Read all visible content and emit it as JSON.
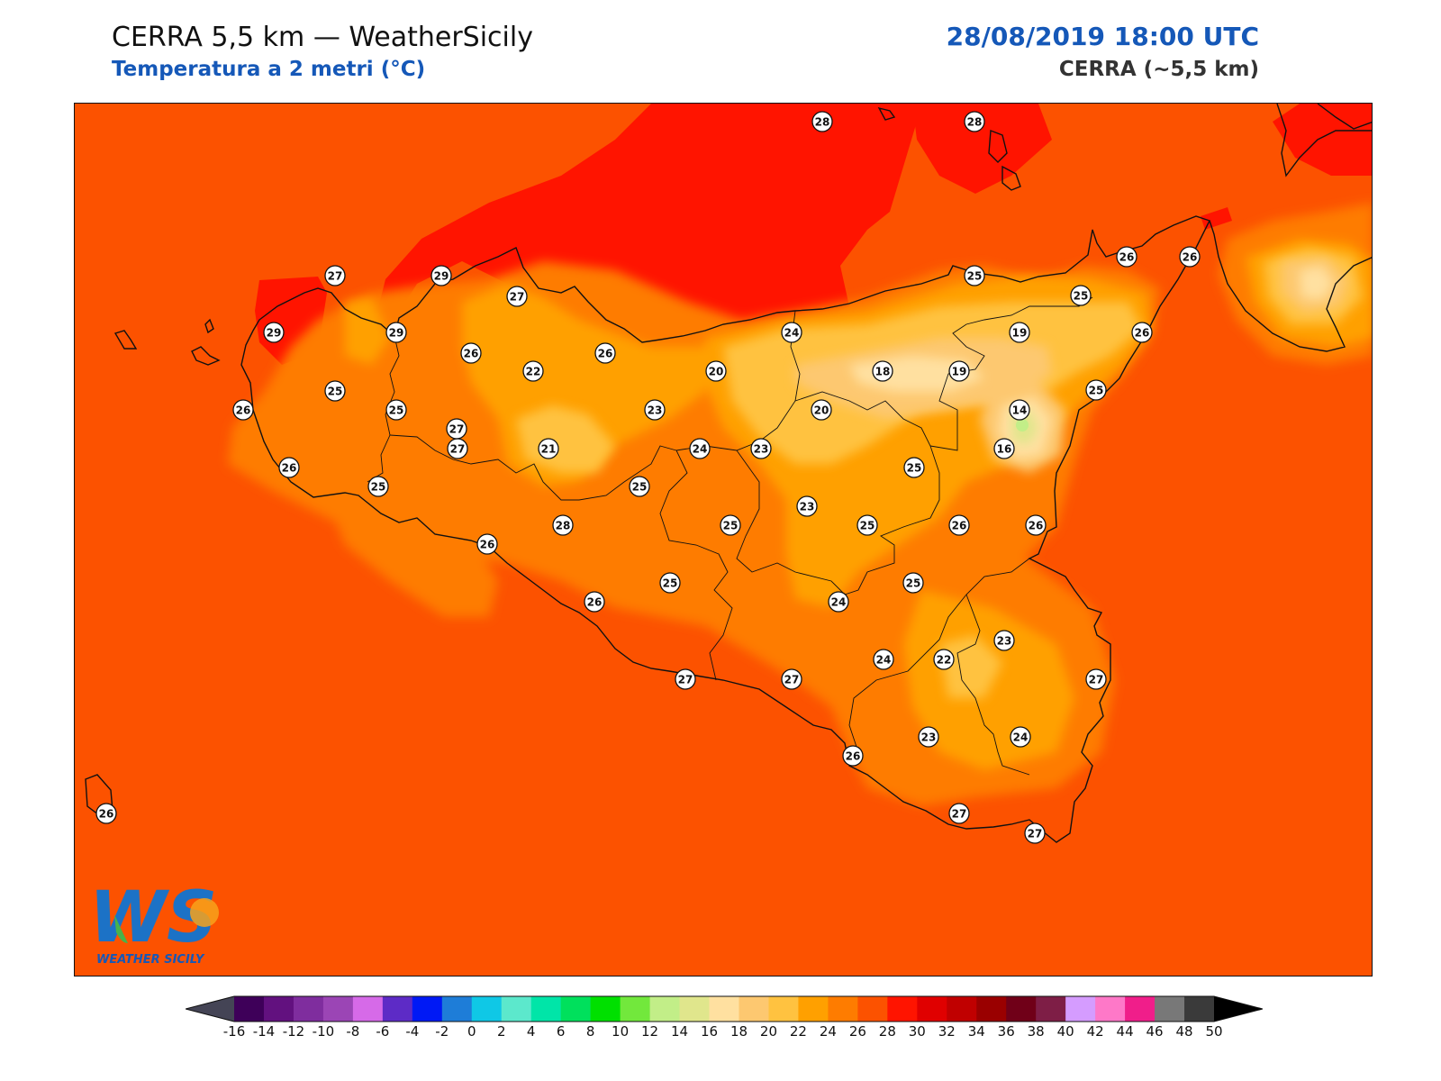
{
  "header": {
    "title": "CERRA 5,5 km — WeatherSicily",
    "subtitle": "Temperatura a 2 metri (°C)",
    "datetime": "28/08/2019 18:00 UTC",
    "model": "CERRA (~5,5 km)"
  },
  "map": {
    "background_color": "#fc5200",
    "stations": [
      {
        "value": "28"
      },
      {
        "value": "28"
      },
      {
        "value": "27"
      },
      {
        "value": "29"
      },
      {
        "value": "27"
      },
      {
        "value": "26"
      },
      {
        "value": "27"
      },
      {
        "value": "29"
      },
      {
        "value": "29"
      },
      {
        "value": "26"
      },
      {
        "value": "22"
      },
      {
        "value": "26"
      },
      {
        "value": "24"
      },
      {
        "value": "25"
      },
      {
        "value": "25"
      },
      {
        "value": "19"
      },
      {
        "value": "26"
      },
      {
        "value": "25"
      },
      {
        "value": "25"
      },
      {
        "value": "26"
      },
      {
        "value": "20"
      },
      {
        "value": "18"
      },
      {
        "value": "19"
      },
      {
        "value": "25"
      },
      {
        "value": "25"
      },
      {
        "value": "23"
      },
      {
        "value": "20"
      },
      {
        "value": "14"
      },
      {
        "value": "27"
      },
      {
        "value": "21"
      },
      {
        "value": "24"
      },
      {
        "value": "23"
      },
      {
        "value": "16"
      },
      {
        "value": "26"
      },
      {
        "value": "26"
      },
      {
        "value": "25"
      },
      {
        "value": "25"
      },
      {
        "value": "28"
      },
      {
        "value": "25"
      },
      {
        "value": "23"
      },
      {
        "value": "26"
      },
      {
        "value": "25"
      },
      {
        "value": "26"
      },
      {
        "value": "26"
      },
      {
        "value": "25"
      },
      {
        "value": "26"
      },
      {
        "value": "24"
      },
      {
        "value": "25"
      },
      {
        "value": "24"
      },
      {
        "value": "22"
      },
      {
        "value": "23"
      },
      {
        "value": "27"
      },
      {
        "value": "27"
      },
      {
        "value": "27"
      },
      {
        "value": "23"
      },
      {
        "value": "24"
      },
      {
        "value": "26"
      },
      {
        "value": "26"
      },
      {
        "value": "27"
      },
      {
        "value": "27"
      }
    ],
    "logo": {
      "text": "WEATHER SICILY",
      "letters": "WS"
    }
  },
  "colorbar": {
    "ticks": [
      "-16",
      "-14",
      "-12",
      "-10",
      "-8",
      "-6",
      "-4",
      "-2",
      "0",
      "2",
      "4",
      "6",
      "8",
      "10",
      "12",
      "14",
      "16",
      "18",
      "20",
      "22",
      "24",
      "26",
      "28",
      "30",
      "32",
      "34",
      "36",
      "38",
      "40",
      "42",
      "44",
      "46",
      "48",
      "50"
    ],
    "colors": [
      "#3e0059",
      "#62117f",
      "#7f2d9e",
      "#9b45b5",
      "#d66ae8",
      "#5d2bc6",
      "#0019f5",
      "#1e7dd8",
      "#0fc8e6",
      "#5ce8cc",
      "#00e5a8",
      "#00e05c",
      "#00e000",
      "#72e83c",
      "#c2ee88",
      "#e0e68c",
      "#ffe0a0",
      "#fdc870",
      "#ffc240",
      "#ffa000",
      "#fe7c00",
      "#fc5200",
      "#ff1400",
      "#e00000",
      "#c00000",
      "#9a0000",
      "#700018",
      "#7e1e46",
      "#d59cff",
      "#fe78c8",
      "#f01e8a",
      "#787878",
      "#3a3a3a"
    ],
    "under_color": "#444455",
    "over_color": "#000000"
  }
}
